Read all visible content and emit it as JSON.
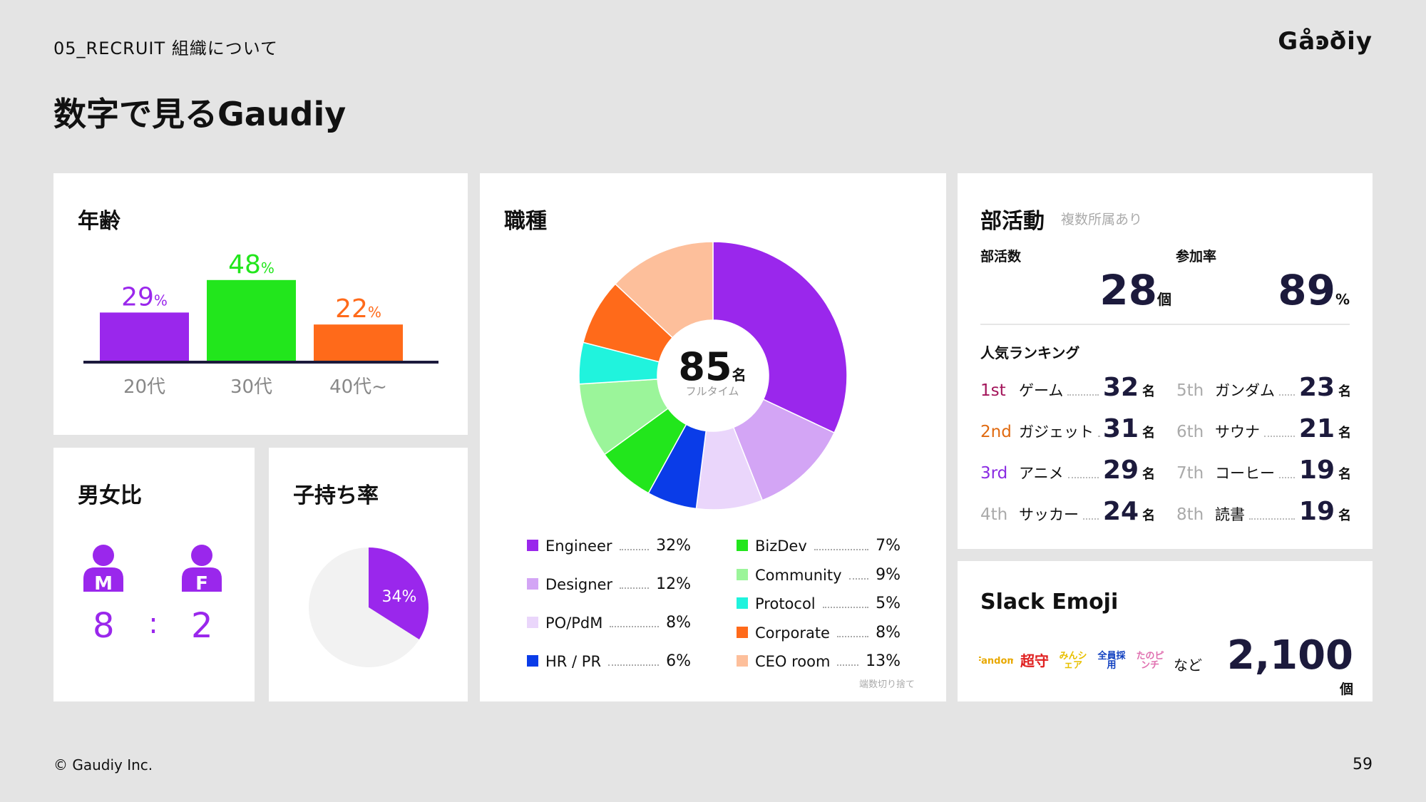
{
  "header": {
    "section": "05_RECRUIT  組織について",
    "logo": "Gåꜿðiy"
  },
  "page_title": "数字で見るGaudiy",
  "colors": {
    "purple": "#9a27ec",
    "green": "#22e61c",
    "orange": "#ff6a1a",
    "navy": "#1c1a3c"
  },
  "age": {
    "title": "年齢",
    "chart_data": {
      "type": "bar",
      "categories": [
        "20代",
        "30代",
        "40代~"
      ],
      "values": [
        29,
        48,
        22
      ],
      "value_labels": [
        "29",
        "48",
        "22"
      ],
      "unit": "%",
      "colors": [
        "#9a27ec",
        "#22e61c",
        "#ff6a1a"
      ]
    }
  },
  "gender": {
    "title": "男女比",
    "male_icon": "male-person-icon",
    "female_icon": "female-person-icon",
    "male_letter": "M",
    "female_letter": "F",
    "male": "8",
    "sep": ":",
    "female": "2"
  },
  "children": {
    "title": "子持ち率",
    "chart_data": {
      "type": "pie",
      "values": [
        34,
        66
      ],
      "label": "34%",
      "colors": [
        "#9a27ec",
        "#f2f2f2"
      ]
    }
  },
  "jobs": {
    "title": "職種",
    "center_num": "85",
    "center_unit": "名",
    "center_sub": "フルタイム",
    "note": "端数切り捨て",
    "chart_data": {
      "type": "pie",
      "labels": [
        "Engineer",
        "Designer",
        "PO/PdM",
        "HR / PR",
        "BizDev",
        "Community",
        "Protocol",
        "Corporate",
        "CEO room"
      ],
      "values": [
        32,
        12,
        8,
        6,
        7,
        9,
        5,
        8,
        13
      ],
      "pct_labels": [
        "32%",
        "12%",
        "8%",
        "6%",
        "7%",
        "9%",
        "5%",
        "8%",
        "13%"
      ],
      "colors": [
        "#9a27ec",
        "#d3a5f5",
        "#ead6fb",
        "#0a3ce8",
        "#22e61c",
        "#9bf59a",
        "#20f3dd",
        "#ff6a1a",
        "#fdbf9b"
      ]
    }
  },
  "club": {
    "title": "部活動",
    "subtitle": "複数所属あり",
    "count_label": "部活数",
    "count": "28",
    "count_unit": "個",
    "rate_label": "参加率",
    "rate": "89",
    "rate_unit": "%",
    "ranking_title": "人気ランキング",
    "ranking": [
      {
        "ord": "1st",
        "name": "ゲーム",
        "num": "32",
        "unit": "名",
        "color": "#a3145a"
      },
      {
        "ord": "2nd",
        "name": "ガジェット",
        "num": "31",
        "unit": "名",
        "color": "#e06a10"
      },
      {
        "ord": "3rd",
        "name": "アニメ",
        "num": "29",
        "unit": "名",
        "color": "#8a2be2"
      },
      {
        "ord": "4th",
        "name": "サッカー",
        "num": "24",
        "unit": "名",
        "color": "#aaaaaa"
      },
      {
        "ord": "5th",
        "name": "ガンダム",
        "num": "23",
        "unit": "名",
        "color": "#aaaaaa"
      },
      {
        "ord": "6th",
        "name": "サウナ",
        "num": "21",
        "unit": "名",
        "color": "#aaaaaa"
      },
      {
        "ord": "7th",
        "name": "コーヒー",
        "num": "19",
        "unit": "名",
        "color": "#aaaaaa"
      },
      {
        "ord": "8th",
        "name": "読書",
        "num": "19",
        "unit": "名",
        "color": "#aaaaaa"
      }
    ]
  },
  "slack": {
    "title": "Slack Emoji",
    "emojis": [
      {
        "text": "Fandom",
        "color": "#e8a800"
      },
      {
        "text": "超守",
        "color": "#e02020"
      },
      {
        "text": "みんシェア",
        "color": "#e8c000"
      },
      {
        "text": "全員採用",
        "color": "#1040c0"
      },
      {
        "text": "たのピンチ",
        "color": "#e070b0"
      }
    ],
    "etc": "など",
    "count": "2,100",
    "unit": "個"
  },
  "footer": {
    "copyright": "© Gaudiy Inc.",
    "page": "59"
  }
}
